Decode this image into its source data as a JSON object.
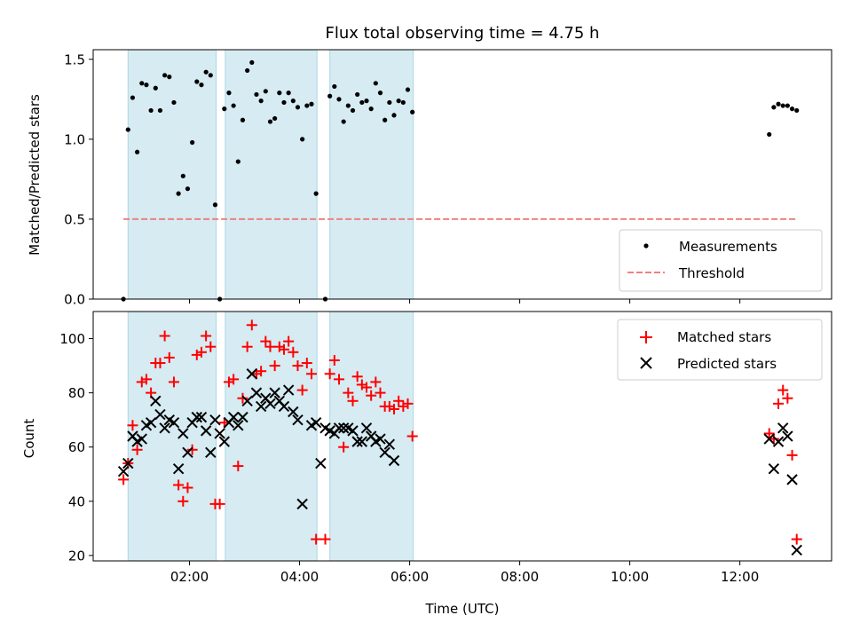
{
  "chart_data": [
    {
      "type": "scatter",
      "title": "Flux total observing time = 4.75 h",
      "xlabel": "",
      "ylabel": "Matched/Predicted stars",
      "x_range": [
        "00:15",
        "13:40"
      ],
      "ylim": [
        0,
        1.56
      ],
      "yticks": [
        "0.0",
        "0.5",
        "1.0",
        "1.5"
      ],
      "grid": false,
      "legend_position": "lower-right",
      "shaded_intervals": [
        [
          "00:53",
          "02:29"
        ],
        [
          "02:39",
          "04:19"
        ],
        [
          "04:33",
          "06:04"
        ]
      ],
      "shade_color": "#add8e6",
      "series": [
        {
          "name": "Measurements",
          "marker": "dot",
          "color": "#000000",
          "points": [
            [
              "00:48",
              0.0
            ],
            [
              "00:53",
              1.06
            ],
            [
              "00:58",
              1.26
            ],
            [
              "01:03",
              0.92
            ],
            [
              "01:08",
              1.35
            ],
            [
              "01:13",
              1.34
            ],
            [
              "01:18",
              1.18
            ],
            [
              "01:23",
              1.32
            ],
            [
              "01:28",
              1.18
            ],
            [
              "01:33",
              1.4
            ],
            [
              "01:38",
              1.39
            ],
            [
              "01:43",
              1.23
            ],
            [
              "01:48",
              0.66
            ],
            [
              "01:53",
              0.77
            ],
            [
              "01:58",
              0.69
            ],
            [
              "02:03",
              0.98
            ],
            [
              "02:08",
              1.36
            ],
            [
              "02:13",
              1.34
            ],
            [
              "02:18",
              1.42
            ],
            [
              "02:23",
              1.4
            ],
            [
              "02:28",
              0.59
            ],
            [
              "02:33",
              0.0
            ],
            [
              "02:38",
              1.19
            ],
            [
              "02:43",
              1.29
            ],
            [
              "02:48",
              1.21
            ],
            [
              "02:53",
              0.86
            ],
            [
              "02:58",
              1.12
            ],
            [
              "03:03",
              1.43
            ],
            [
              "03:08",
              1.48
            ],
            [
              "03:13",
              1.28
            ],
            [
              "03:18",
              1.24
            ],
            [
              "03:23",
              1.3
            ],
            [
              "03:28",
              1.11
            ],
            [
              "03:33",
              1.13
            ],
            [
              "03:38",
              1.29
            ],
            [
              "03:43",
              1.23
            ],
            [
              "03:48",
              1.29
            ],
            [
              "03:53",
              1.24
            ],
            [
              "03:58",
              1.2
            ],
            [
              "04:03",
              1.0
            ],
            [
              "04:08",
              1.21
            ],
            [
              "04:13",
              1.22
            ],
            [
              "04:18",
              0.66
            ],
            [
              "04:28",
              0.0
            ],
            [
              "04:33",
              1.27
            ],
            [
              "04:38",
              1.33
            ],
            [
              "04:43",
              1.25
            ],
            [
              "04:48",
              1.11
            ],
            [
              "04:53",
              1.21
            ],
            [
              "04:58",
              1.18
            ],
            [
              "05:03",
              1.28
            ],
            [
              "05:08",
              1.23
            ],
            [
              "05:13",
              1.24
            ],
            [
              "05:18",
              1.19
            ],
            [
              "05:23",
              1.35
            ],
            [
              "05:28",
              1.29
            ],
            [
              "05:33",
              1.12
            ],
            [
              "05:38",
              1.23
            ],
            [
              "05:43",
              1.15
            ],
            [
              "05:48",
              1.24
            ],
            [
              "05:53",
              1.23
            ],
            [
              "05:58",
              1.31
            ],
            [
              "06:03",
              1.17
            ],
            [
              "12:32",
              1.03
            ],
            [
              "12:37",
              1.2
            ],
            [
              "12:42",
              1.22
            ],
            [
              "12:47",
              1.21
            ],
            [
              "12:52",
              1.21
            ],
            [
              "12:57",
              1.19
            ],
            [
              "13:02",
              1.18
            ]
          ]
        },
        {
          "name": "Threshold",
          "style": "dashed",
          "color": "#f08080",
          "x": [
            "00:48",
            "13:02"
          ],
          "y": [
            0.5,
            0.5
          ]
        }
      ]
    },
    {
      "type": "scatter",
      "title": "",
      "xlabel": "Time (UTC)",
      "ylabel": "Count",
      "x_range": [
        "00:15",
        "13:40"
      ],
      "xticks": [
        "02:00",
        "04:00",
        "06:00",
        "08:00",
        "10:00",
        "12:00"
      ],
      "ylim": [
        18,
        110
      ],
      "yticks": [
        "20",
        "40",
        "60",
        "80",
        "100"
      ],
      "grid": false,
      "legend_position": "upper-right",
      "shaded_intervals": [
        [
          "00:53",
          "02:29"
        ],
        [
          "02:39",
          "04:19"
        ],
        [
          "04:33",
          "06:04"
        ]
      ],
      "shade_color": "#add8e6",
      "series": [
        {
          "name": "Matched stars",
          "marker": "plus",
          "color": "#ff0000",
          "points": [
            [
              "00:48",
              48
            ],
            [
              "00:53",
              54
            ],
            [
              "00:58",
              68
            ],
            [
              "01:03",
              59
            ],
            [
              "01:08",
              84
            ],
            [
              "01:13",
              85
            ],
            [
              "01:18",
              80
            ],
            [
              "01:23",
              91
            ],
            [
              "01:28",
              91
            ],
            [
              "01:33",
              101
            ],
            [
              "01:38",
              93
            ],
            [
              "01:43",
              84
            ],
            [
              "01:48",
              46
            ],
            [
              "01:53",
              40
            ],
            [
              "01:58",
              45
            ],
            [
              "02:03",
              59
            ],
            [
              "02:08",
              94
            ],
            [
              "02:13",
              95
            ],
            [
              "02:18",
              101
            ],
            [
              "02:23",
              97
            ],
            [
              "02:28",
              39
            ],
            [
              "02:33",
              39
            ],
            [
              "02:38",
              69
            ],
            [
              "02:43",
              84
            ],
            [
              "02:48",
              85
            ],
            [
              "02:53",
              53
            ],
            [
              "02:58",
              78
            ],
            [
              "03:03",
              97
            ],
            [
              "03:08",
              105
            ],
            [
              "03:13",
              87
            ],
            [
              "03:18",
              88
            ],
            [
              "03:23",
              99
            ],
            [
              "03:28",
              97
            ],
            [
              "03:33",
              90
            ],
            [
              "03:38",
              97
            ],
            [
              "03:43",
              96
            ],
            [
              "03:48",
              99
            ],
            [
              "03:53",
              95
            ],
            [
              "03:58",
              90
            ],
            [
              "04:03",
              81
            ],
            [
              "04:08",
              91
            ],
            [
              "04:13",
              87
            ],
            [
              "04:18",
              26
            ],
            [
              "04:28",
              26
            ],
            [
              "04:33",
              87
            ],
            [
              "04:38",
              92
            ],
            [
              "04:43",
              85
            ],
            [
              "04:48",
              60
            ],
            [
              "04:53",
              80
            ],
            [
              "04:58",
              77
            ],
            [
              "05:03",
              86
            ],
            [
              "05:08",
              83
            ],
            [
              "05:13",
              82
            ],
            [
              "05:18",
              79
            ],
            [
              "05:23",
              84
            ],
            [
              "05:28",
              80
            ],
            [
              "05:33",
              75
            ],
            [
              "05:38",
              75
            ],
            [
              "05:43",
              74
            ],
            [
              "05:48",
              77
            ],
            [
              "05:53",
              75
            ],
            [
              "05:58",
              76
            ],
            [
              "06:03",
              64
            ],
            [
              "12:32",
              65
            ],
            [
              "12:37",
              63
            ],
            [
              "12:42",
              76
            ],
            [
              "12:47",
              81
            ],
            [
              "12:52",
              78
            ],
            [
              "12:57",
              57
            ],
            [
              "13:02",
              26
            ]
          ]
        },
        {
          "name": "Predicted stars",
          "marker": "x",
          "color": "#000000",
          "points": [
            [
              "00:48",
              51
            ],
            [
              "00:53",
              54
            ],
            [
              "00:58",
              64
            ],
            [
              "01:03",
              62
            ],
            [
              "01:08",
              63
            ],
            [
              "01:13",
              68
            ],
            [
              "01:18",
              69
            ],
            [
              "01:23",
              77
            ],
            [
              "01:28",
              72
            ],
            [
              "01:33",
              67
            ],
            [
              "01:38",
              70
            ],
            [
              "01:43",
              69
            ],
            [
              "01:48",
              52
            ],
            [
              "01:53",
              65
            ],
            [
              "01:58",
              58
            ],
            [
              "02:03",
              69
            ],
            [
              "02:08",
              71
            ],
            [
              "02:13",
              71
            ],
            [
              "02:18",
              66
            ],
            [
              "02:23",
              58
            ],
            [
              "02:28",
              70
            ],
            [
              "02:33",
              65
            ],
            [
              "02:38",
              62
            ],
            [
              "02:43",
              69
            ],
            [
              "02:48",
              71
            ],
            [
              "02:53",
              68
            ],
            [
              "02:58",
              71
            ],
            [
              "03:03",
              77
            ],
            [
              "03:08",
              87
            ],
            [
              "03:13",
              80
            ],
            [
              "03:18",
              75
            ],
            [
              "03:23",
              78
            ],
            [
              "03:28",
              76
            ],
            [
              "03:33",
              80
            ],
            [
              "03:38",
              77
            ],
            [
              "03:43",
              75
            ],
            [
              "03:48",
              81
            ],
            [
              "03:53",
              73
            ],
            [
              "03:58",
              70
            ],
            [
              "04:03",
              39
            ],
            [
              "04:13",
              68
            ],
            [
              "04:18",
              69
            ],
            [
              "04:23",
              54
            ],
            [
              "04:28",
              67
            ],
            [
              "04:33",
              66
            ],
            [
              "04:38",
              65
            ],
            [
              "04:43",
              67
            ],
            [
              "04:48",
              67
            ],
            [
              "04:53",
              67
            ],
            [
              "04:58",
              66
            ],
            [
              "05:03",
              62
            ],
            [
              "05:08",
              62
            ],
            [
              "05:13",
              67
            ],
            [
              "05:18",
              64
            ],
            [
              "05:23",
              62
            ],
            [
              "05:28",
              63
            ],
            [
              "05:33",
              58
            ],
            [
              "05:38",
              61
            ],
            [
              "05:43",
              55
            ],
            [
              "12:32",
              63
            ],
            [
              "12:37",
              52
            ],
            [
              "12:42",
              62
            ],
            [
              "12:47",
              67
            ],
            [
              "12:52",
              64
            ],
            [
              "12:57",
              48
            ],
            [
              "13:02",
              22
            ]
          ]
        }
      ]
    }
  ]
}
